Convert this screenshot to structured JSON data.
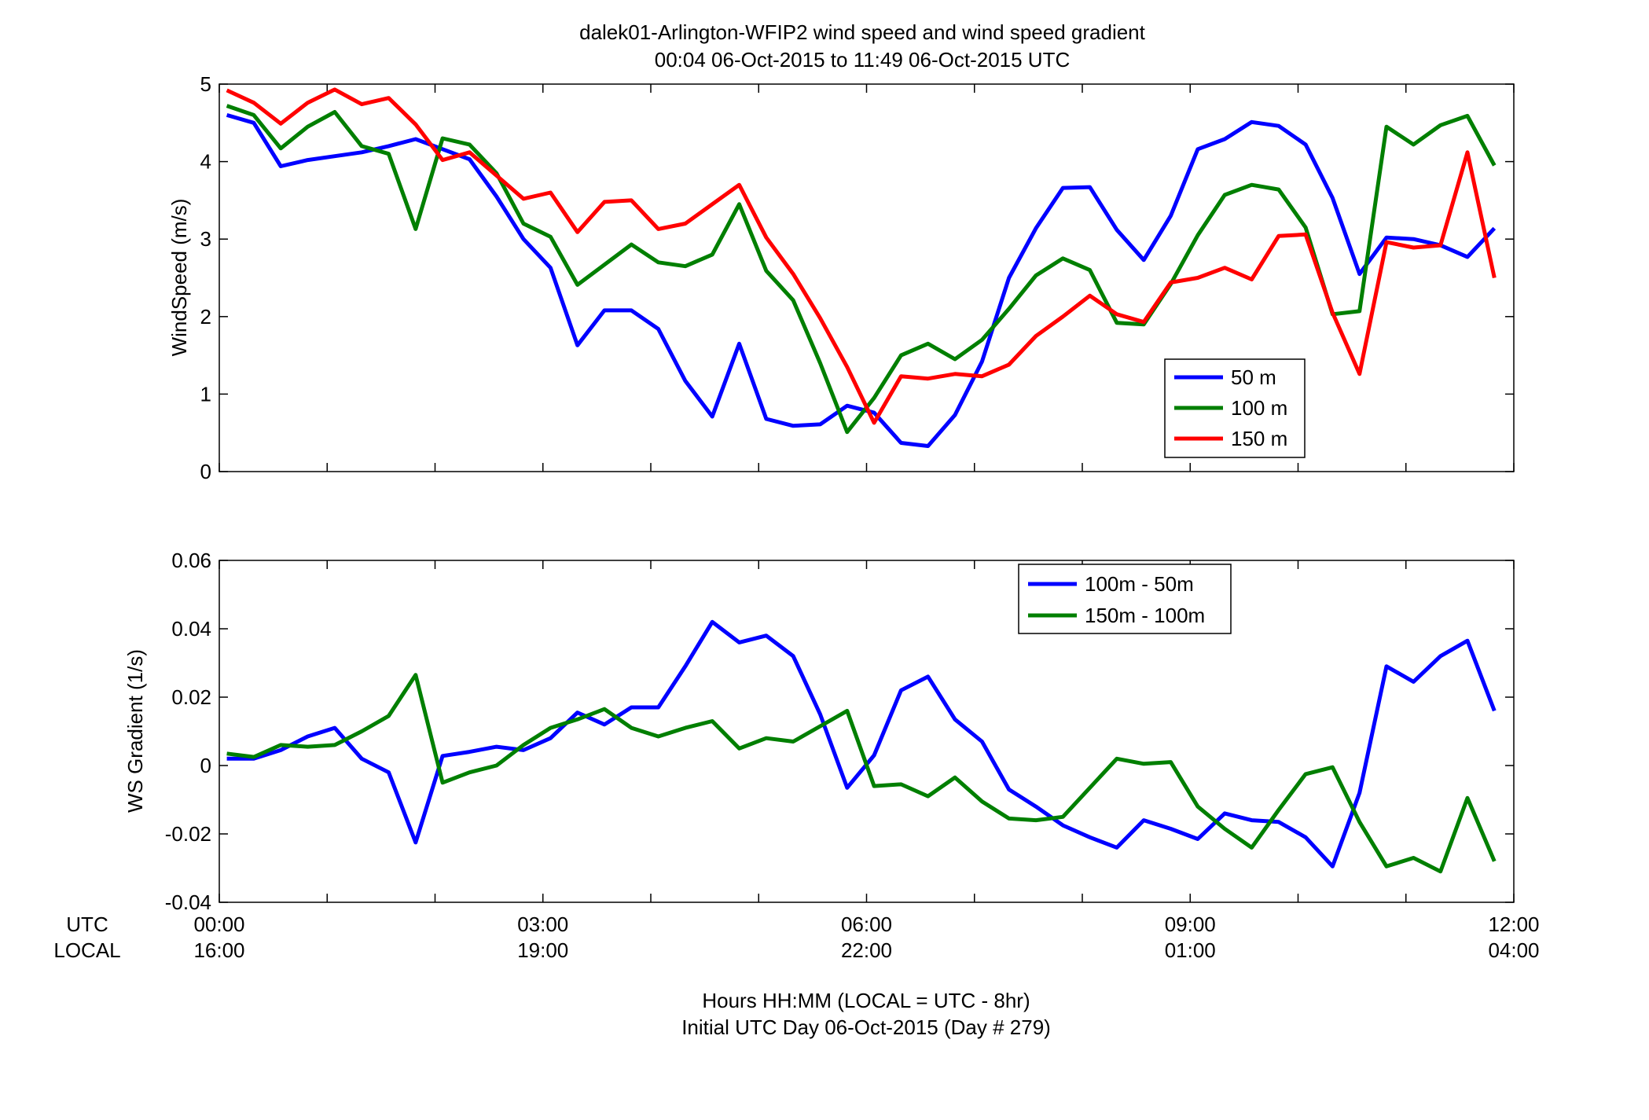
{
  "title_line1": "dalek01-Arlington-WFIP2  wind speed and wind speed gradient",
  "title_line2": "00:04 06-Oct-2015 to 11:49 06-Oct-2015  UTC",
  "x_row_labels": {
    "utc": "UTC",
    "local": "LOCAL"
  },
  "x_ticks": [
    {
      "hour": 0,
      "utc": "00:00",
      "local": "16:00"
    },
    {
      "hour": 3,
      "utc": "03:00",
      "local": "19:00"
    },
    {
      "hour": 6,
      "utc": "06:00",
      "local": "22:00"
    },
    {
      "hour": 9,
      "utc": "09:00",
      "local": "01:00"
    },
    {
      "hour": 12,
      "utc": "12:00",
      "local": "04:00"
    }
  ],
  "xlabel_line1": "Hours HH:MM  (LOCAL = UTC - 8hr)",
  "xlabel_line2": "Initial UTC Day 06-Oct-2015 (Day # 279)",
  "chart_data": [
    {
      "type": "line",
      "ylabel": "WindSpeed (m/s)",
      "xlim": [
        0,
        12
      ],
      "ylim": [
        0,
        5
      ],
      "yticks": [
        0,
        1,
        2,
        3,
        4,
        5
      ],
      "ytick_labels": [
        "0",
        "1",
        "2",
        "3",
        "4",
        "5"
      ],
      "legend_position": "lower-right",
      "x": [
        0.07,
        0.32,
        0.57,
        0.82,
        1.07,
        1.32,
        1.57,
        1.82,
        2.07,
        2.32,
        2.57,
        2.82,
        3.07,
        3.32,
        3.57,
        3.82,
        4.07,
        4.32,
        4.57,
        4.82,
        5.07,
        5.32,
        5.57,
        5.82,
        6.07,
        6.32,
        6.57,
        6.82,
        7.07,
        7.32,
        7.57,
        7.82,
        8.07,
        8.32,
        8.57,
        8.82,
        9.07,
        9.32,
        9.57,
        9.82,
        10.07,
        10.32,
        10.57,
        10.82,
        11.07,
        11.32,
        11.57,
        11.82
      ],
      "series": [
        {
          "name": "50 m",
          "color": "#0000ff",
          "values": [
            4.6,
            4.5,
            3.94,
            4.02,
            4.07,
            4.12,
            4.2,
            4.29,
            4.16,
            4.03,
            3.55,
            3.0,
            2.63,
            1.63,
            2.08,
            2.08,
            1.84,
            1.17,
            0.71,
            1.65,
            0.68,
            0.59,
            0.61,
            0.85,
            0.76,
            0.37,
            0.33,
            0.73,
            1.42,
            2.5,
            3.14,
            3.66,
            3.67,
            3.12,
            2.73,
            3.3,
            4.16,
            4.29,
            4.51,
            4.46,
            4.22,
            3.53,
            2.55,
            3.02,
            3.0,
            2.92,
            2.77,
            3.14
          ]
        },
        {
          "name": "100 m",
          "color": "#007f00",
          "values": [
            4.72,
            4.6,
            4.17,
            4.45,
            4.64,
            4.2,
            4.1,
            3.13,
            4.3,
            4.22,
            3.85,
            3.2,
            3.03,
            2.41,
            2.67,
            2.93,
            2.7,
            2.65,
            2.8,
            3.45,
            2.59,
            2.21,
            1.4,
            0.51,
            0.95,
            1.5,
            1.65,
            1.45,
            1.7,
            2.1,
            2.53,
            2.75,
            2.6,
            1.92,
            1.9,
            2.42,
            3.05,
            3.57,
            3.7,
            3.64,
            3.15,
            2.03,
            2.07,
            4.45,
            4.22,
            4.47,
            4.59,
            3.95
          ]
        },
        {
          "name": "150 m",
          "color": "#ff0000",
          "values": [
            4.92,
            4.76,
            4.49,
            4.76,
            4.93,
            4.74,
            4.82,
            4.48,
            4.02,
            4.12,
            3.82,
            3.52,
            3.6,
            3.09,
            3.48,
            3.5,
            3.13,
            3.2,
            3.45,
            3.7,
            3.02,
            2.55,
            1.98,
            1.35,
            0.63,
            1.23,
            1.2,
            1.26,
            1.23,
            1.38,
            1.75,
            2.0,
            2.27,
            2.03,
            1.93,
            2.44,
            2.5,
            2.63,
            2.48,
            3.04,
            3.06,
            2.05,
            1.26,
            2.96,
            2.89,
            2.92,
            4.12,
            2.5
          ]
        }
      ]
    },
    {
      "type": "line",
      "ylabel": "WS Gradient (1/s)",
      "xlim": [
        0,
        12
      ],
      "ylim": [
        -0.04,
        0.06
      ],
      "yticks": [
        -0.04,
        -0.02,
        0,
        0.02,
        0.04,
        0.06
      ],
      "ytick_labels": [
        "-0.04",
        "-0.02",
        "0",
        "0.02",
        "0.04",
        "0.06"
      ],
      "legend_position": "upper-center",
      "x": [
        0.07,
        0.32,
        0.57,
        0.82,
        1.07,
        1.32,
        1.57,
        1.82,
        2.07,
        2.32,
        2.57,
        2.82,
        3.07,
        3.32,
        3.57,
        3.82,
        4.07,
        4.32,
        4.57,
        4.82,
        5.07,
        5.32,
        5.57,
        5.82,
        6.07,
        6.32,
        6.57,
        6.82,
        7.07,
        7.32,
        7.57,
        7.82,
        8.07,
        8.32,
        8.57,
        8.82,
        9.07,
        9.32,
        9.57,
        9.82,
        10.07,
        10.32,
        10.57,
        10.82,
        11.07,
        11.32,
        11.57,
        11.82
      ],
      "series": [
        {
          "name": "100m - 50m",
          "color": "#0000ff",
          "values": [
            0.002,
            0.002,
            0.0045,
            0.0085,
            0.011,
            0.002,
            -0.002,
            -0.0225,
            0.0028,
            0.004,
            0.0055,
            0.0045,
            0.008,
            0.0155,
            0.012,
            0.017,
            0.017,
            0.029,
            0.042,
            0.036,
            0.038,
            0.032,
            0.015,
            -0.0065,
            0.003,
            0.022,
            0.026,
            0.0135,
            0.007,
            -0.007,
            -0.012,
            -0.0175,
            -0.021,
            -0.024,
            -0.016,
            -0.0185,
            -0.0215,
            -0.014,
            -0.016,
            -0.0165,
            -0.021,
            -0.0295,
            -0.008,
            0.029,
            0.0245,
            0.032,
            0.0365,
            0.016
          ]
        },
        {
          "name": "150m - 100m",
          "color": "#007f00",
          "values": [
            0.0035,
            0.0025,
            0.006,
            0.0055,
            0.006,
            0.01,
            0.0145,
            0.0265,
            -0.005,
            -0.002,
            0.0,
            0.006,
            0.011,
            0.0135,
            0.0165,
            0.011,
            0.0085,
            0.011,
            0.013,
            0.005,
            0.008,
            0.007,
            0.0115,
            0.016,
            -0.006,
            -0.0055,
            -0.009,
            -0.0035,
            -0.0105,
            -0.0155,
            -0.016,
            -0.015,
            -0.0065,
            0.002,
            0.0005,
            0.001,
            -0.012,
            -0.0185,
            -0.024,
            -0.013,
            -0.0025,
            -0.0005,
            -0.0165,
            -0.0295,
            -0.027,
            -0.031,
            -0.0095,
            -0.028
          ]
        }
      ]
    }
  ]
}
